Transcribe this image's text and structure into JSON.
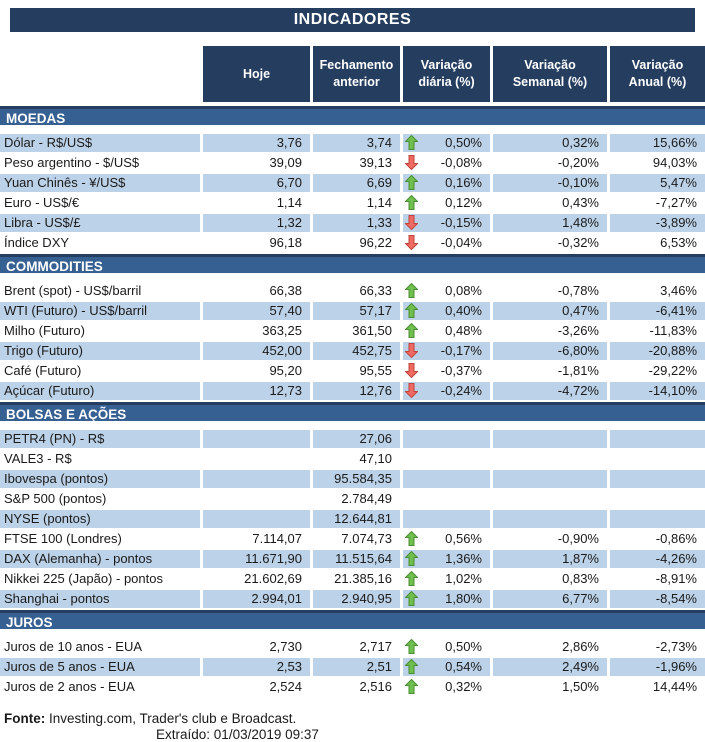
{
  "title": "INDICADORES",
  "columns": {
    "hoje": "Hoje",
    "fechamento": "Fechamento anterior",
    "diaria": "Variação diária (%)",
    "semanal": "Variação Semanal (%)",
    "anual": "Variação Anual (%)"
  },
  "icons": {
    "up": "trend-up-arrow-icon",
    "down": "trend-down-arrow-icon"
  },
  "colors": {
    "navy": "#253E5F",
    "section_blue": "#366092",
    "stripe_blue": "#BCD2E8",
    "up_green": "#6FBF4E",
    "up_green_border": "#4A8C33",
    "down_red": "#EF6A62",
    "down_red_border": "#C0433C"
  },
  "sections": [
    {
      "id": "moedas",
      "name": "MOEDAS",
      "stripe_first": true,
      "rows": [
        {
          "label": "Dólar - R$/US$",
          "hoje": "3,76",
          "fechamento": "3,74",
          "arrow": "up",
          "diaria": "0,50%",
          "semanal": "0,32%",
          "anual": "15,66%"
        },
        {
          "label": "Peso argentino - $/US$",
          "hoje": "39,09",
          "fechamento": "39,13",
          "arrow": "down",
          "diaria": "-0,08%",
          "semanal": "-0,20%",
          "anual": "94,03%"
        },
        {
          "label": "Yuan Chinês - ¥/US$",
          "hoje": "6,70",
          "fechamento": "6,69",
          "arrow": "up",
          "diaria": "0,16%",
          "semanal": "-0,10%",
          "anual": "5,47%"
        },
        {
          "label": "Euro - US$/€",
          "hoje": "1,14",
          "fechamento": "1,14",
          "arrow": "up",
          "diaria": "0,12%",
          "semanal": "0,43%",
          "anual": "-7,27%"
        },
        {
          "label": "Libra - US$/£",
          "hoje": "1,32",
          "fechamento": "1,33",
          "arrow": "down",
          "diaria": "-0,15%",
          "semanal": "1,48%",
          "anual": "-3,89%"
        },
        {
          "label": "Índice DXY",
          "hoje": "96,18",
          "fechamento": "96,22",
          "arrow": "down",
          "diaria": "-0,04%",
          "semanal": "-0,32%",
          "anual": "6,53%"
        }
      ]
    },
    {
      "id": "commodities",
      "name": "COMMODITIES",
      "stripe_first": false,
      "rows": [
        {
          "label": "Brent (spot) - US$/barril",
          "hoje": "66,38",
          "fechamento": "66,33",
          "arrow": "up",
          "diaria": "0,08%",
          "semanal": "-0,78%",
          "anual": "3,46%"
        },
        {
          "label": "WTI (Futuro) - US$/barril",
          "hoje": "57,40",
          "fechamento": "57,17",
          "arrow": "up",
          "diaria": "0,40%",
          "semanal": "0,47%",
          "anual": "-6,41%"
        },
        {
          "label": "Milho (Futuro)",
          "hoje": "363,25",
          "fechamento": "361,50",
          "arrow": "up",
          "diaria": "0,48%",
          "semanal": "-3,26%",
          "anual": "-11,83%"
        },
        {
          "label": "Trigo (Futuro)",
          "hoje": "452,00",
          "fechamento": "452,75",
          "arrow": "down",
          "diaria": "-0,17%",
          "semanal": "-6,80%",
          "anual": "-20,88%"
        },
        {
          "label": "Café (Futuro)",
          "hoje": "95,20",
          "fechamento": "95,55",
          "arrow": "down",
          "diaria": "-0,37%",
          "semanal": "-1,81%",
          "anual": "-29,22%"
        },
        {
          "label": "Açúcar (Futuro)",
          "hoje": "12,73",
          "fechamento": "12,76",
          "arrow": "down",
          "diaria": "-0,24%",
          "semanal": "-4,72%",
          "anual": "-14,10%"
        }
      ]
    },
    {
      "id": "bolsas-e-acoes",
      "name": "BOLSAS E AÇÕES",
      "stripe_first": true,
      "rows": [
        {
          "label": "PETR4 (PN) - R$",
          "hoje": "",
          "fechamento": "27,06",
          "arrow": "",
          "diaria": "",
          "semanal": "",
          "anual": ""
        },
        {
          "label": "VALE3 - R$",
          "hoje": "",
          "fechamento": "47,10",
          "arrow": "",
          "diaria": "",
          "semanal": "",
          "anual": ""
        },
        {
          "label": "Ibovespa (pontos)",
          "hoje": "",
          "fechamento": "95.584,35",
          "arrow": "",
          "diaria": "",
          "semanal": "",
          "anual": ""
        },
        {
          "label": "S&P 500 (pontos)",
          "hoje": "",
          "fechamento": "2.784,49",
          "arrow": "",
          "diaria": "",
          "semanal": "",
          "anual": ""
        },
        {
          "label": "NYSE (pontos)",
          "hoje": "",
          "fechamento": "12.644,81",
          "arrow": "",
          "diaria": "",
          "semanal": "",
          "anual": ""
        },
        {
          "label": "FTSE 100 (Londres)",
          "hoje": "7.114,07",
          "fechamento": "7.074,73",
          "arrow": "up",
          "diaria": "0,56%",
          "semanal": "-0,90%",
          "anual": "-0,86%"
        },
        {
          "label": "DAX (Alemanha) - pontos",
          "hoje": "11.671,90",
          "fechamento": "11.515,64",
          "arrow": "up",
          "diaria": "1,36%",
          "semanal": "1,87%",
          "anual": "-4,26%"
        },
        {
          "label": "Nikkei 225 (Japão) - pontos",
          "hoje": "21.602,69",
          "fechamento": "21.385,16",
          "arrow": "up",
          "diaria": "1,02%",
          "semanal": "0,83%",
          "anual": "-8,91%"
        },
        {
          "label": "Shanghai - pontos",
          "hoje": "2.994,01",
          "fechamento": "2.940,95",
          "arrow": "up",
          "diaria": "1,80%",
          "semanal": "6,77%",
          "anual": "-8,54%"
        }
      ]
    },
    {
      "id": "juros",
      "name": "JUROS",
      "stripe_first": false,
      "rows": [
        {
          "label": "Juros de 10 anos - EUA",
          "hoje": "2,730",
          "fechamento": "2,717",
          "arrow": "up",
          "diaria": "0,50%",
          "semanal": "2,86%",
          "anual": "-2,73%"
        },
        {
          "label": "Juros de 5 anos - EUA",
          "hoje": "2,53",
          "fechamento": "2,51",
          "arrow": "up",
          "diaria": "0,54%",
          "semanal": "2,49%",
          "anual": "-1,96%"
        },
        {
          "label": "Juros de 2 anos - EUA",
          "hoje": "2,524",
          "fechamento": "2,516",
          "arrow": "up",
          "diaria": "0,32%",
          "semanal": "1,50%",
          "anual": "14,44%"
        }
      ]
    }
  ],
  "footer": {
    "fonte_label": "Fonte:",
    "fonte_text": "Investing.com, Trader's club e Broadcast.",
    "extraido_label": "Extraído:",
    "extraido_value": "01/03/2019 09:37"
  }
}
